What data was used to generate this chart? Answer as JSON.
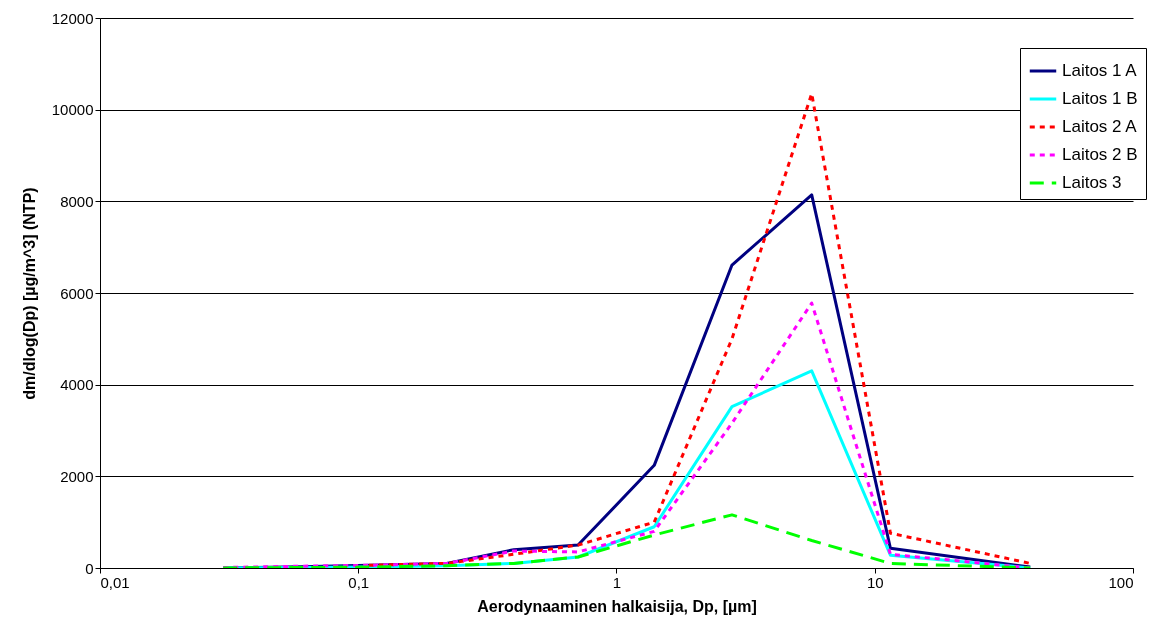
{
  "chart_data": {
    "type": "line",
    "xlabel": "Aerodynaaminen halkaisija, Dp, [µm]",
    "ylabel": "dm/dlog(Dp) [µg/m^3] (NTP)",
    "x": [
      0.03,
      0.06,
      0.11,
      0.22,
      0.4,
      0.71,
      1.4,
      2.8,
      5.7,
      11.5,
      40
    ],
    "log": "x",
    "grid": "y",
    "legend": "top right",
    "xlim": [
      0.01,
      100
    ],
    "xticks": [
      {
        "value": 0.01,
        "label": "0,01"
      },
      {
        "value": 0.1,
        "label": "0,1"
      },
      1,
      10,
      100
    ],
    "ylim": [
      0,
      12000
    ],
    "yticks": [
      0,
      2000,
      4000,
      6000,
      8000,
      10000,
      12000
    ],
    "series": [
      {
        "name": "Laitos 1 A",
        "color": "#000080",
        "line_style": "solid",
        "values": [
          0,
          30,
          60,
          100,
          400,
          500,
          2240,
          6610,
          8140,
          430,
          20
        ]
      },
      {
        "name": "Laitos 1 B",
        "color": "#00ffff",
        "line_style": "solid",
        "values": [
          0,
          10,
          20,
          50,
          100,
          240,
          900,
          3520,
          4300,
          280,
          0
        ]
      },
      {
        "name": "Laitos 2 A",
        "color": "#ff0000",
        "line_style": "dotted",
        "values": [
          null,
          null,
          60,
          100,
          300,
          500,
          1000,
          5000,
          10350,
          760,
          100
        ]
      },
      {
        "name": "Laitos 2 B",
        "color": "#ff00ff",
        "line_style": "dotted",
        "values": [
          10,
          40,
          60,
          100,
          370,
          350,
          800,
          3160,
          5780,
          300,
          0
        ]
      },
      {
        "name": "Laitos 3",
        "color": "#00ff00",
        "line_style": "dashed",
        "values": [
          0,
          10,
          20,
          50,
          100,
          240,
          720,
          1160,
          600,
          100,
          0
        ]
      }
    ]
  }
}
